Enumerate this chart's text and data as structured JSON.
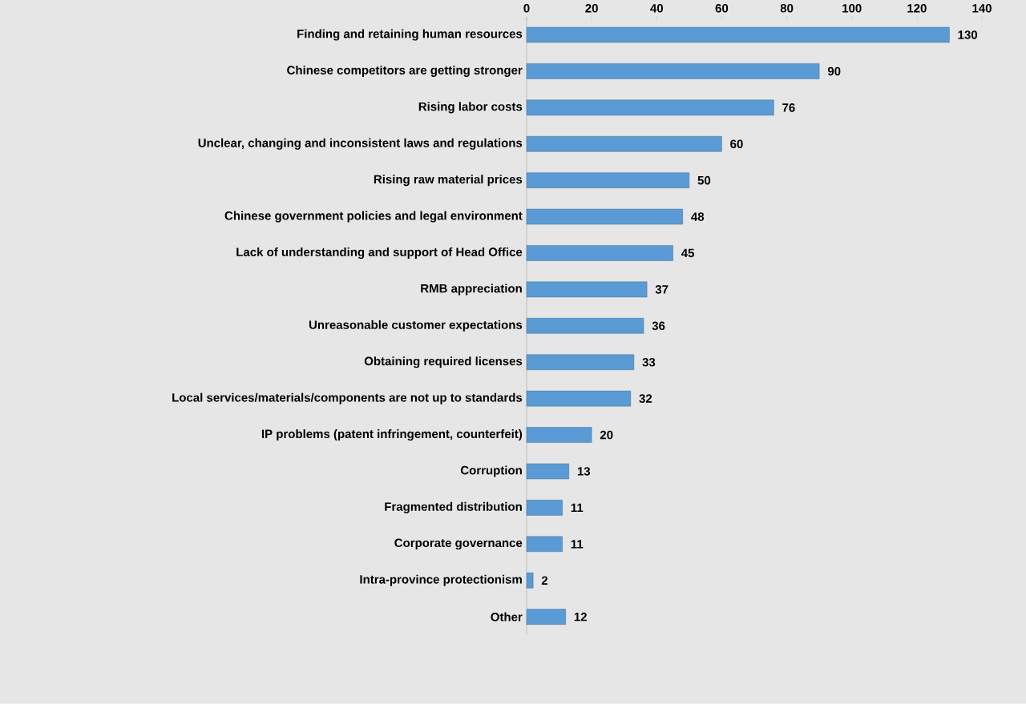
{
  "chart_data": {
    "type": "bar",
    "orientation": "horizontal",
    "categories": [
      "Finding and retaining human resources",
      "Chinese competitors are getting stronger",
      "Rising labor costs",
      "Unclear, changing and inconsistent laws and regulations",
      "Rising raw material prices",
      "Chinese government policies and legal environment",
      "Lack of understanding and support of Head Office",
      "RMB appreciation",
      "Unreasonable customer expectations",
      "Obtaining required licenses",
      "Local services/materials/components are not up to standards",
      "IP problems (patent infringement, counterfeit)",
      "Corruption",
      "Fragmented distribution",
      "Corporate governance",
      "Intra-province protectionism",
      "Other"
    ],
    "values": [
      130,
      90,
      76,
      60,
      50,
      48,
      45,
      37,
      36,
      33,
      32,
      20,
      13,
      11,
      11,
      2,
      12
    ],
    "color": "#5b9bd5",
    "xlim": [
      0,
      140
    ],
    "xticks": [
      0,
      20,
      40,
      60,
      80,
      100,
      120,
      140
    ],
    "data_labels": true
  }
}
